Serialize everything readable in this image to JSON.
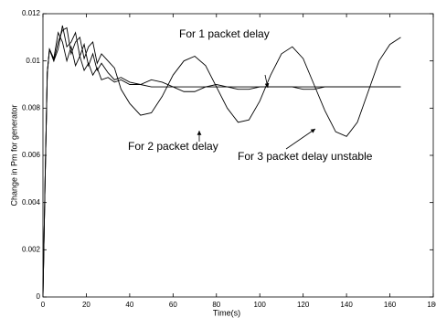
{
  "chart_data": {
    "type": "line",
    "x_label": "Time(s)",
    "y_label": "Change in Pm for generator",
    "x": [
      0,
      1,
      2,
      3,
      5,
      7,
      9,
      11,
      13,
      15,
      17,
      19,
      21,
      23,
      25,
      27,
      30,
      33,
      36,
      40,
      45,
      50,
      55,
      60,
      65,
      70,
      75,
      80,
      85,
      90,
      95,
      100,
      105,
      110,
      115,
      120,
      125,
      130,
      135,
      140,
      145,
      150,
      155,
      160,
      165
    ],
    "series": [
      {
        "color": "#000000",
        "values": [
          0,
          0.005,
          0.0095,
          0.0105,
          0.0101,
          0.0112,
          0.0108,
          0.01,
          0.0106,
          0.0098,
          0.0102,
          0.0096,
          0.0099,
          0.0094,
          0.0097,
          0.0092,
          0.0093,
          0.0091,
          0.0092,
          0.009,
          0.009,
          0.0089,
          0.0089,
          0.0089,
          0.0089,
          0.0089,
          0.0089,
          0.0089,
          0.0089,
          0.0089,
          0.0089,
          0.0089,
          0.0089,
          0.0089,
          0.0089,
          0.0089,
          0.0089,
          0.0089,
          0.0089,
          0.0089,
          0.0089,
          0.0089,
          0.0089,
          0.0089,
          0.0089
        ]
      },
      {
        "color": "#000000",
        "values": [
          0,
          0.005,
          0.0095,
          0.0105,
          0.01,
          0.0105,
          0.0115,
          0.0106,
          0.0108,
          0.0112,
          0.0102,
          0.0107,
          0.0098,
          0.0103,
          0.0096,
          0.0099,
          0.0095,
          0.0092,
          0.0093,
          0.0091,
          0.009,
          0.0092,
          0.0091,
          0.0089,
          0.0087,
          0.0087,
          0.0089,
          0.009,
          0.0089,
          0.0088,
          0.0088,
          0.0089,
          0.0089,
          0.0089,
          0.0089,
          0.0088,
          0.0088,
          0.0089,
          0.0089,
          0.0089,
          0.0089,
          0.0089,
          0.0089,
          0.0089,
          0.0089
        ]
      },
      {
        "color": "#000000",
        "values": [
          0,
          0.005,
          0.0095,
          0.0105,
          0.01,
          0.0108,
          0.0113,
          0.0114,
          0.0103,
          0.0108,
          0.011,
          0.0101,
          0.0106,
          0.0108,
          0.0099,
          0.0103,
          0.01,
          0.0097,
          0.0088,
          0.0082,
          0.0077,
          0.0078,
          0.0085,
          0.0094,
          0.01,
          0.0102,
          0.0098,
          0.0089,
          0.008,
          0.0074,
          0.0075,
          0.0083,
          0.0094,
          0.0103,
          0.0106,
          0.0101,
          0.009,
          0.0079,
          0.007,
          0.0068,
          0.0074,
          0.0087,
          0.01,
          0.0107,
          0.011
        ]
      }
    ],
    "annotations": [
      "For 1 packet delay",
      "For 2 packet delay",
      "For 3 packet delay unstable"
    ],
    "xlim": [
      0,
      180
    ],
    "xticks": [
      0,
      20,
      40,
      60,
      80,
      100,
      120,
      140,
      160,
      180
    ],
    "ylim": [
      0,
      0.012
    ],
    "yticks": [
      0,
      0.002,
      0.004,
      0.006,
      0.008,
      0.01,
      0.012
    ],
    "grid": false
  }
}
